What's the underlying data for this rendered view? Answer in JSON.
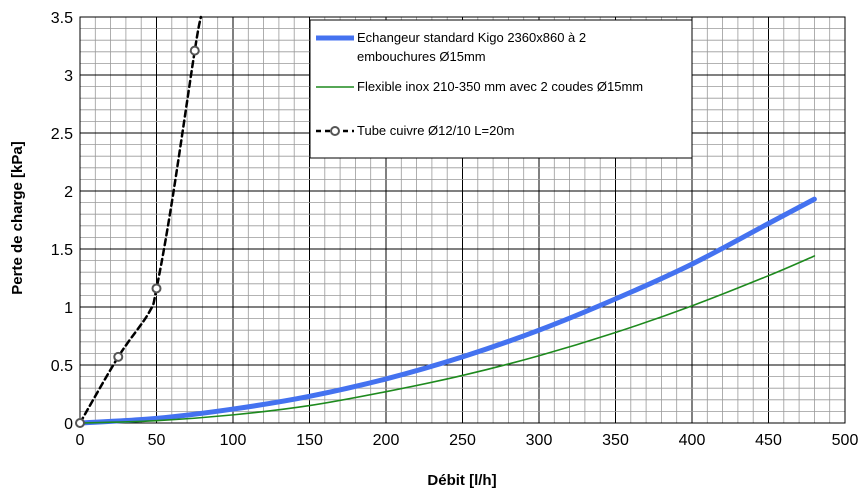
{
  "chart_data": {
    "type": "line",
    "xlabel": "Débit [l/h]",
    "ylabel": "Perte de charge [kPa]",
    "xlim": [
      0,
      500
    ],
    "ylim": [
      0,
      3.5
    ],
    "x_ticks": [
      "0",
      "50",
      "100",
      "150",
      "200",
      "250",
      "300",
      "350",
      "400",
      "450",
      "500"
    ],
    "y_ticks": [
      "0",
      "0.5",
      "1",
      "1.5",
      "2",
      "2.5",
      "3",
      "3.5"
    ],
    "grid": "major and minor",
    "legend_position": "top-right",
    "series": [
      {
        "name": "Echangeur standard Kigo 2360x860 à 2 embouchures Ø15mm",
        "legend_lines": [
          "Echangeur standard Kigo 2360x860 à 2",
          "embouchures Ø15mm"
        ],
        "color": "#4472F0",
        "style": "solid-thick",
        "x": [
          0,
          50,
          100,
          150,
          200,
          250,
          300,
          350,
          400,
          450,
          480
        ],
        "y": [
          0.0,
          0.04,
          0.12,
          0.23,
          0.38,
          0.57,
          0.8,
          1.07,
          1.37,
          1.72,
          1.93
        ]
      },
      {
        "name": "Flexible inox 210-350 mm avec 2 coudes Ø15mm",
        "legend_lines": [
          "Flexible inox 210-350 mm avec 2 coudes Ø15mm"
        ],
        "color": "#1E8A1E",
        "style": "solid-thin",
        "x": [
          0,
          50,
          100,
          150,
          200,
          250,
          300,
          350,
          400,
          450,
          480
        ],
        "y": [
          0.0,
          0.02,
          0.07,
          0.15,
          0.27,
          0.41,
          0.58,
          0.78,
          1.01,
          1.27,
          1.44
        ]
      },
      {
        "name": "Tube cuivre Ø12/10 L=20m",
        "legend_lines": [
          "Tube cuivre Ø12/10 L=20m"
        ],
        "color": "#000000",
        "style": "dashed-markers",
        "x": [
          0,
          25,
          45,
          50,
          60,
          75,
          79
        ],
        "y": [
          0.0,
          0.57,
          0.95,
          1.16,
          1.9,
          3.21,
          3.5
        ],
        "markers": [
          [
            0,
            0.0
          ],
          [
            25,
            0.57
          ],
          [
            50,
            1.16
          ],
          [
            75,
            3.21
          ]
        ]
      }
    ]
  }
}
